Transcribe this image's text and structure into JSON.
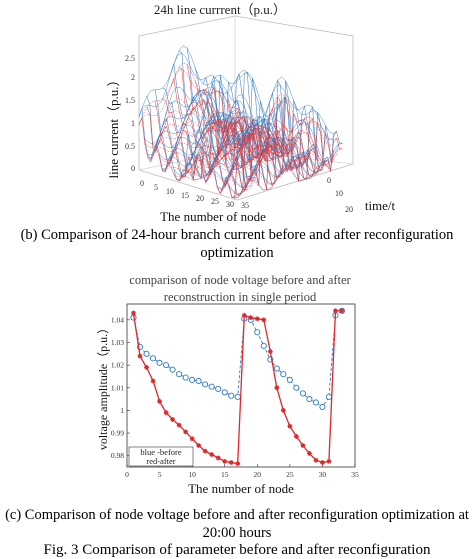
{
  "chart_data": [
    {
      "type": "surface3d",
      "title": "24h line currrent（p.u.）",
      "xlabel": "The number of node",
      "ylabel": "time/t",
      "zlabel": "line current（p.u.）",
      "x_ticks": [
        "0",
        "5",
        "10",
        "15",
        "20",
        "25",
        "30",
        "35"
      ],
      "y_ticks": [
        "0",
        "10",
        "20"
      ],
      "z_ticks": [
        "0",
        "0.5",
        "1",
        "1.5",
        "2",
        "2.5"
      ],
      "xlim": [
        0,
        37
      ],
      "ylim": [
        0,
        24
      ],
      "zlim": [
        0,
        2.7
      ],
      "series": [
        {
          "name": "",
          "color": "#e23a3a"
        },
        {
          "name": "",
          "color": "#2f78c4"
        }
      ]
    },
    {
      "type": "line",
      "title": "comparison of node voltage before and after reconstruction in single period",
      "xlabel": "The number of node",
      "ylabel": "voltage amplitude（p.u.）",
      "x_ticks": [
        "0",
        "5",
        "10",
        "15",
        "20",
        "25",
        "30",
        "35"
      ],
      "y_ticks": [
        "0.98",
        "0.99",
        "1",
        "1.01",
        "1.02",
        "1.03",
        "1.04"
      ],
      "xlim": [
        0,
        35
      ],
      "ylim": [
        0.975,
        1.047
      ],
      "legend": [
        "blue -before",
        "red-after"
      ],
      "legend_position": "bottom-left",
      "series": [
        {
          "name": "blue -before",
          "color": "#2f78c4",
          "x": [
            1,
            2,
            3,
            4,
            5,
            6,
            7,
            8,
            9,
            10,
            11,
            12,
            13,
            14,
            15,
            16,
            17,
            18,
            19,
            20,
            21,
            22,
            23,
            24,
            25,
            26,
            27,
            28,
            29,
            30,
            31,
            32,
            33
          ],
          "values": [
            1.041,
            1.028,
            1.025,
            1.023,
            1.021,
            1.02,
            1.018,
            1.016,
            1.0145,
            1.0135,
            1.013,
            1.0115,
            1.0105,
            1.0095,
            1.008,
            1.0065,
            1.006,
            1.0405,
            1.04,
            1.0345,
            1.0285,
            1.0225,
            1.0185,
            1.016,
            1.0135,
            1.01,
            1.0075,
            1.005,
            1.0035,
            1.0015,
            1.006,
            1.042,
            1.044
          ]
        },
        {
          "name": "red-after",
          "color": "#e0282a",
          "x": [
            1,
            2,
            3,
            4,
            5,
            6,
            7,
            8,
            9,
            10,
            11,
            12,
            13,
            14,
            15,
            16,
            17,
            18,
            19,
            20,
            21,
            22,
            23,
            24,
            25,
            26,
            27,
            28,
            29,
            30,
            31,
            32,
            33
          ],
          "values": [
            1.043,
            1.024,
            1.019,
            1.013,
            1.004,
            0.999,
            0.996,
            0.9935,
            0.9905,
            0.9875,
            0.9845,
            0.982,
            0.9805,
            0.979,
            0.9775,
            0.977,
            0.9765,
            1.042,
            1.041,
            1.0405,
            1.04,
            1.026,
            1.01,
            1.0,
            0.993,
            0.9885,
            0.9845,
            0.981,
            0.978,
            0.977,
            0.9775,
            1.044,
            1.044
          ]
        }
      ]
    }
  ],
  "captions": {
    "b": "(b) Comparison of 24-hour branch current before and after reconfiguration optimization",
    "c": "(c) Comparison of node voltage before and after reconfiguration optimization at 20:00 hours",
    "fig": "Fig. 3    Comparison of parameter before and after reconfiguration"
  }
}
